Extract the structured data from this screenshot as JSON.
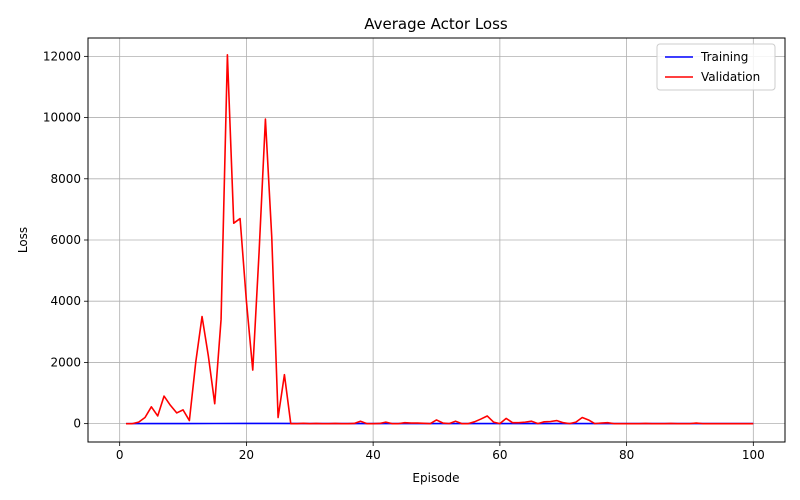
{
  "chart_data": {
    "type": "line",
    "title": "Average Actor Loss",
    "xlabel": "Episode",
    "ylabel": "Loss",
    "xlim": [
      -5,
      105
    ],
    "ylim": [
      -600,
      12600
    ],
    "xticks": [
      0,
      20,
      40,
      60,
      80,
      100
    ],
    "yticks": [
      0,
      2000,
      4000,
      6000,
      8000,
      10000,
      12000
    ],
    "grid": true,
    "legend_position": "top-right",
    "series": [
      {
        "name": "Training",
        "color": "#0000ff",
        "x": [
          1,
          5,
          10,
          15,
          20,
          25,
          30,
          35,
          40,
          45,
          50,
          55,
          60,
          65,
          70,
          75,
          80,
          85,
          90,
          95,
          100
        ],
        "values": [
          0,
          3,
          2,
          4,
          5,
          8,
          3,
          2,
          2,
          2,
          1,
          1,
          1,
          1,
          1,
          1,
          1,
          1,
          1,
          1,
          1
        ]
      },
      {
        "name": "Validation",
        "color": "#ff0000",
        "x": [
          1,
          2,
          3,
          4,
          5,
          6,
          7,
          8,
          9,
          10,
          11,
          12,
          13,
          14,
          15,
          16,
          17,
          18,
          19,
          20,
          21,
          22,
          23,
          24,
          25,
          26,
          27,
          28,
          29,
          30,
          31,
          32,
          33,
          34,
          35,
          36,
          37,
          38,
          39,
          40,
          41,
          42,
          43,
          44,
          45,
          46,
          47,
          48,
          49,
          50,
          51,
          52,
          53,
          54,
          55,
          56,
          57,
          58,
          59,
          60,
          61,
          62,
          63,
          64,
          65,
          66,
          67,
          68,
          69,
          70,
          71,
          72,
          73,
          74,
          75,
          76,
          77,
          78,
          79,
          80,
          81,
          82,
          83,
          84,
          85,
          86,
          87,
          88,
          89,
          90,
          91,
          92,
          93,
          94,
          95,
          96,
          97,
          98,
          99,
          100
        ],
        "values": [
          0,
          0,
          50,
          200,
          550,
          250,
          900,
          600,
          350,
          450,
          100,
          2000,
          3500,
          2200,
          650,
          3400,
          12050,
          6550,
          6700,
          4000,
          1750,
          5600,
          9950,
          6100,
          200,
          1600,
          0,
          0,
          10,
          0,
          5,
          0,
          0,
          5,
          0,
          0,
          5,
          80,
          0,
          0,
          5,
          50,
          0,
          0,
          30,
          20,
          20,
          10,
          0,
          120,
          20,
          0,
          80,
          0,
          0,
          60,
          150,
          250,
          50,
          0,
          170,
          30,
          30,
          50,
          80,
          0,
          60,
          70,
          100,
          30,
          0,
          50,
          200,
          120,
          0,
          20,
          30,
          0,
          0,
          0,
          0,
          0,
          5,
          0,
          0,
          0,
          5,
          0,
          0,
          0,
          20,
          0,
          0,
          0,
          0,
          0,
          0,
          0,
          0,
          0
        ]
      }
    ]
  }
}
